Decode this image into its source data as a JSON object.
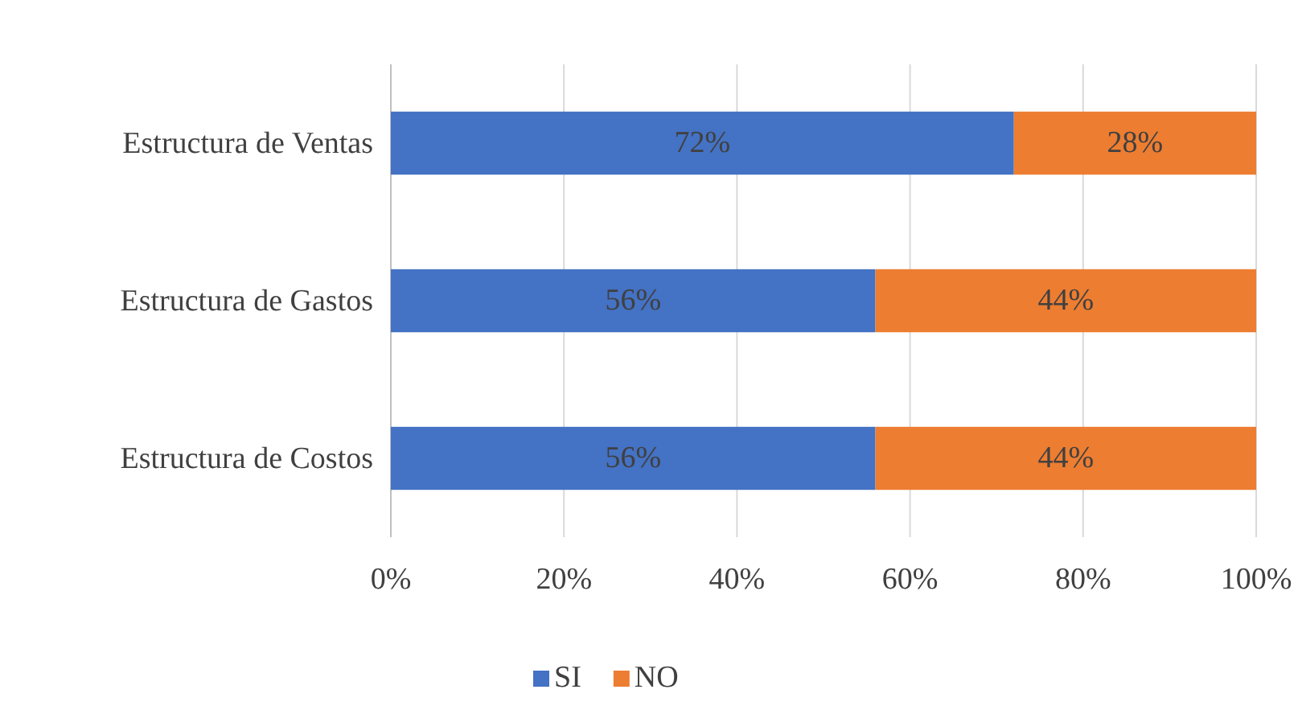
{
  "chart_data": {
    "type": "bar",
    "orientation": "horizontal",
    "stacked": true,
    "categories": [
      "Estructura de Ventas",
      "Estructura de Gastos",
      "Estructura de Costos"
    ],
    "series": [
      {
        "name": "SI",
        "color": "#4472c4",
        "values": [
          72,
          56,
          56
        ],
        "value_labels": [
          "72%",
          "56%",
          "56%"
        ]
      },
      {
        "name": "NO",
        "color": "#ed7d31",
        "values": [
          28,
          44,
          44
        ],
        "value_labels": [
          "28%",
          "44%",
          "44%"
        ]
      }
    ],
    "xlim": [
      0,
      100
    ],
    "xticks": [
      {
        "value": 0,
        "label": "0%"
      },
      {
        "value": 20,
        "label": "20%"
      },
      {
        "value": 40,
        "label": "40%"
      },
      {
        "value": 60,
        "label": "60%"
      },
      {
        "value": 80,
        "label": "80%"
      },
      {
        "value": 100,
        "label": "100%"
      }
    ],
    "grid": "x",
    "legend": "bottom"
  }
}
